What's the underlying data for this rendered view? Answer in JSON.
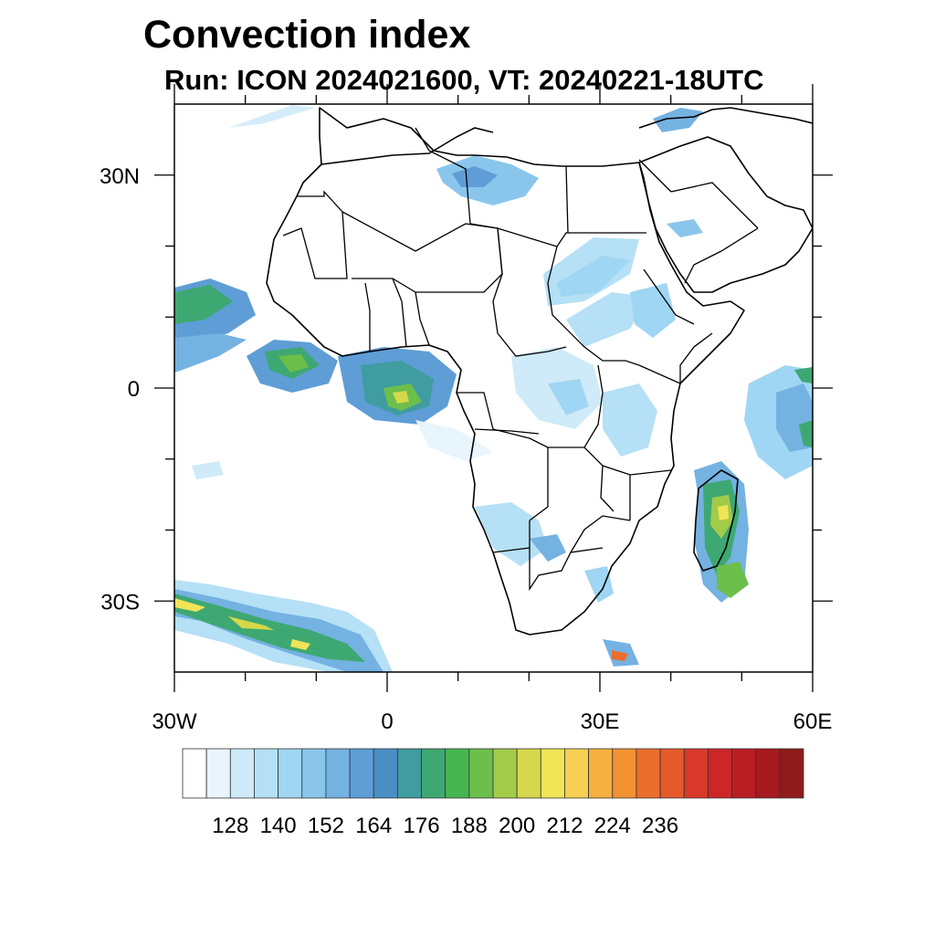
{
  "title": "Convection index",
  "subtitle": "Run: ICON 2024021600,  VT: 20240221-18UTC",
  "map": {
    "lon_range": [
      -30,
      60
    ],
    "lat_range": [
      -40,
      40
    ],
    "lon_ticks": [
      {
        "value": -30,
        "label": "30W"
      },
      {
        "value": 0,
        "label": "0"
      },
      {
        "value": 30,
        "label": "30E"
      },
      {
        "value": 60,
        "label": "60E"
      }
    ],
    "lat_ticks": [
      {
        "value": 30,
        "label": "30N"
      },
      {
        "value": 0,
        "label": "0"
      },
      {
        "value": -30,
        "label": "30S"
      }
    ],
    "minor_lon_ticks": [
      -20,
      -10,
      10,
      20,
      40,
      50
    ],
    "minor_lat_ticks": [
      20,
      10,
      -10,
      -20
    ]
  },
  "colorbar": {
    "colors": [
      "#ffffff",
      "#e8f5fc",
      "#cfeaf8",
      "#b5e0f6",
      "#9fd6f3",
      "#8ac6ec",
      "#74b2e2",
      "#5e9dd6",
      "#4a8ec4",
      "#3f9ca0",
      "#3ea872",
      "#45b552",
      "#6cbf4a",
      "#a3cb4a",
      "#d5d84b",
      "#f1e457",
      "#f6cf53",
      "#f5b040",
      "#f29232",
      "#ec6e2c",
      "#e45a2a",
      "#d8392a",
      "#cc2629",
      "#b81e24",
      "#a5191f",
      "#8f1b1b"
    ],
    "tick_labels": [
      "128",
      "140",
      "152",
      "164",
      "176",
      "188",
      "200",
      "212",
      "224",
      "236"
    ]
  }
}
